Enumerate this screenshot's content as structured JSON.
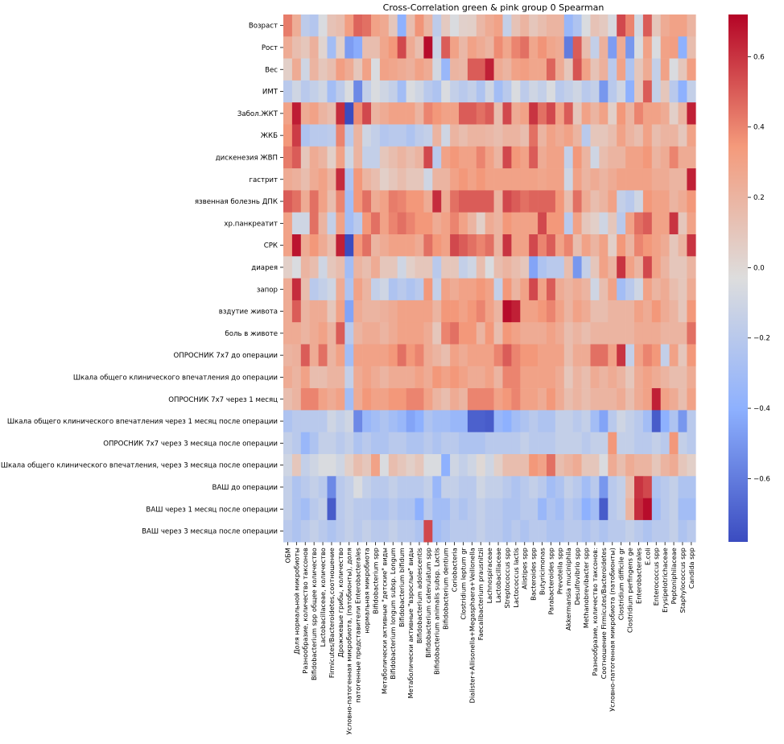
{
  "chart_data": {
    "type": "heatmap",
    "title": "Cross-Correlation green & pink group 0 Spearman",
    "xlabel": "",
    "ylabel": "",
    "colormap": "coolwarm",
    "colormap_stops": [
      "#3b4cc0",
      "#8db0fe",
      "#dddddd",
      "#f49a7b",
      "#b40426"
    ],
    "vmin": -0.78,
    "vmax": 0.72,
    "colorbar_ticks": [
      "0.6",
      "0.4",
      "0.2",
      "0.0",
      "−0.2",
      "−0.4",
      "−0.6"
    ],
    "colorbar_tick_values": [
      0.6,
      0.4,
      0.2,
      0.0,
      -0.2,
      -0.4,
      -0.6
    ],
    "rows": [
      "Возраст",
      "Рост",
      "Вес",
      "ИМТ",
      "Забол.ЖКТ",
      "ЖКБ",
      "дискенезия ЖВП",
      "гастрит",
      "язвенная болезнь ДПК",
      "хр.панкреатит",
      "СРК",
      "диарея",
      "запор",
      "вздутие живота",
      "боль в животе",
      "ОПРОСНИК 7х7 до операции",
      "Шкала общего клинического впечатления до операции",
      "ОПРОСНИК 7х7 через 1 месяц",
      "Шкала общего клинического впечатления через 1 месяц после операции",
      "ОПРОСНИК 7х7 через 3 месяца после операции",
      "Шкала общего клинического впечатления, через 3 месяца после операции",
      "ВАШ до операции",
      "ВАШ через 1 месяц после операции",
      "ВАШ через 3 месяца после операции"
    ],
    "columns": [
      "ОБМ",
      "Доля нормальной микробиоты",
      "Разнообразие, количество таксонов",
      "Bifidobacterium spp общее количество",
      "Lactobacillaceae, количество",
      "Firmicutes/Bacteroidetes,соотношение",
      "Дрожжевые грибы, количество",
      "Условно-патогенная микробиота, (патобионты), доля",
      "патогенные представители Enterobacterales",
      "нормальная микробиота",
      "Bifidobacterium spp",
      "Метаболически активные \"детские\" виды",
      "Bifidobacterium longum subsp. Longum",
      "Bifidobacterium bifidum",
      "Метаболически активные \"взрослые\" виды",
      "Bifidobacterium adolescentis",
      "Bifidobacterium catenulatum spp",
      "Bifidobacterium animalis subsp. Lactis",
      "Bifidobacterium dentium",
      "Coriobacteria",
      "Clostridium leptum gr",
      "Dialister+Allisonella+Megasphaera+Veillonella",
      "Faecalibacterium prausnitzii",
      "Lachnospiraceae",
      "Lactobacillaceae",
      "Streptococcus spp",
      "Lactococcus lactis",
      "Alistipes spp",
      "Bacteroides spp",
      "Butyricimonas",
      "Parabacteroides spp",
      "Prevotella spp",
      "Akkermansia muciniphila",
      "Desulfovibrio spp",
      "Methanobrevibacter spp",
      "Разнообразие, количество таксонов:",
      "Соотношение Firmicutes/Bacteroidetes",
      "Условно-патогенная микробиота (патобионты)",
      "Clostridium difficile gr",
      "Clostridium perfingens ge",
      "Enterobacterales",
      "E.coli",
      "Enterococcus spp",
      "Erysipelotrichaceae",
      "Peptoniphilaceae",
      "Staphylococcus spp",
      "Candida spp"
    ],
    "values": [
      [
        0.42,
        0.24,
        -0.18,
        -0.22,
        -0.05,
        0.12,
        0.15,
        0.32,
        0.48,
        0.45,
        0.3,
        0.26,
        0.1,
        -0.4,
        0.15,
        0.36,
        0.2,
        -0.18,
        0.08,
        -0.05,
        0.04,
        0.05,
        0.18,
        0.25,
        0.3,
        -0.15,
        0.12,
        0.2,
        0.1,
        0.15,
        0.2,
        0.2,
        -0.35,
        -0.25,
        -0.05,
        0.12,
        0.08,
        -0.06,
        0.55,
        0.4,
        -0.08,
        0.5,
        0.1,
        0.25,
        0.3,
        0.3,
        0.2
      ],
      [
        0.25,
        0.15,
        0.1,
        0.22,
        0.02,
        -0.3,
        0.05,
        -0.48,
        -0.42,
        0.15,
        0.15,
        0.28,
        0.35,
        0.55,
        0.25,
        0.15,
        0.7,
        -0.12,
        0.5,
        0.3,
        0.18,
        0.3,
        0.25,
        0.2,
        0.38,
        0.28,
        0.4,
        0.45,
        0.28,
        0.36,
        0.28,
        0.25,
        -0.6,
        0.5,
        0.15,
        -0.15,
        0.22,
        -0.48,
        0.25,
        -0.5,
        -0.05,
        0.3,
        -0.05,
        0.3,
        0.32,
        -0.4,
        0.15
      ],
      [
        0.05,
        0.25,
        -0.1,
        0.2,
        0.1,
        0.15,
        0.32,
        0.25,
        0.1,
        0.3,
        -0.05,
        0.3,
        0.28,
        0.25,
        0.22,
        0.3,
        0.25,
        -0.08,
        -0.35,
        0.2,
        0.18,
        0.5,
        0.5,
        0.65,
        0.25,
        0.2,
        0.3,
        0.32,
        0.28,
        0.28,
        0.48,
        0.25,
        0.1,
        0.52,
        0.3,
        0.12,
        0.22,
        -0.2,
        0.3,
        -0.25,
        0.1,
        0.25,
        -0.15,
        0.3,
        -0.05,
        0.1,
        0.32
      ],
      [
        -0.2,
        -0.1,
        -0.2,
        -0.15,
        -0.1,
        -0.3,
        -0.18,
        -0.05,
        -0.55,
        -0.15,
        -0.05,
        -0.1,
        -0.15,
        -0.3,
        -0.05,
        -0.1,
        -0.2,
        -0.25,
        -0.05,
        -0.15,
        -0.2,
        -0.15,
        -0.25,
        -0.1,
        -0.3,
        -0.2,
        -0.05,
        -0.18,
        -0.1,
        -0.15,
        -0.05,
        -0.2,
        -0.15,
        -0.1,
        -0.2,
        -0.15,
        -0.5,
        -0.2,
        -0.1,
        -0.4,
        0.1,
        0.5,
        -0.15,
        0.1,
        -0.2,
        -0.4,
        -0.15
      ],
      [
        0.3,
        0.66,
        0.25,
        0.3,
        0.2,
        0.15,
        0.62,
        -0.78,
        0.38,
        0.55,
        0.2,
        0.25,
        0.3,
        0.3,
        0.3,
        0.2,
        0.4,
        0.35,
        0.3,
        0.3,
        0.5,
        0.5,
        0.45,
        0.5,
        0.15,
        0.55,
        0.25,
        0.3,
        0.6,
        0.45,
        0.55,
        0.3,
        0.5,
        0.1,
        0.3,
        0.2,
        0.3,
        0.05,
        0.35,
        0.2,
        0.4,
        0.3,
        0.3,
        0.25,
        0.05,
        0.2,
        0.65
      ],
      [
        0.35,
        0.58,
        -0.25,
        -0.2,
        -0.2,
        -0.18,
        0.4,
        -0.2,
        0.2,
        -0.1,
        -0.15,
        -0.22,
        -0.2,
        -0.2,
        -0.25,
        -0.18,
        -0.15,
        0.2,
        -0.1,
        0.2,
        0.15,
        0.2,
        0.2,
        0.18,
        0.15,
        0.2,
        0.2,
        0.15,
        0.45,
        0.2,
        0.3,
        0.25,
        0.3,
        0.2,
        -0.2,
        0.1,
        0.1,
        0.15,
        0.3,
        0.2,
        0.15,
        0.3,
        0.15,
        0.2,
        0.2,
        0.1,
        0.3
      ],
      [
        0.42,
        0.5,
        0.1,
        0.25,
        0.2,
        0.05,
        0.3,
        -0.1,
        0.2,
        -0.15,
        -0.15,
        0.1,
        0.15,
        0.2,
        0.15,
        0.2,
        0.55,
        -0.2,
        0.3,
        0.35,
        0.3,
        0.3,
        0.4,
        0.3,
        0.2,
        0.55,
        0.35,
        0.3,
        0.5,
        0.25,
        0.3,
        0.3,
        -0.15,
        0.35,
        0.2,
        -0.1,
        0.15,
        0.2,
        0.2,
        0.3,
        0.3,
        0.35,
        0.2,
        0.25,
        0.4,
        0.25,
        0.25
      ],
      [
        0.25,
        0.22,
        0.15,
        0.25,
        0.3,
        0.2,
        0.62,
        -0.25,
        0.35,
        0.2,
        0.15,
        0.05,
        0.1,
        0.15,
        0.1,
        0.1,
        -0.1,
        0.2,
        0.2,
        0.3,
        0.35,
        0.3,
        0.35,
        0.3,
        0.3,
        0.3,
        0.3,
        0.3,
        0.3,
        0.28,
        0.3,
        0.3,
        -0.1,
        0.3,
        0.2,
        0.25,
        0.2,
        0.25,
        0.3,
        0.3,
        0.3,
        0.3,
        0.25,
        0.25,
        0.2,
        0.2,
        0.65
      ],
      [
        0.5,
        0.45,
        0.25,
        0.45,
        0.3,
        0.15,
        0.4,
        -0.3,
        0.35,
        0.45,
        0.25,
        0.3,
        0.42,
        0.4,
        0.35,
        0.35,
        0.25,
        0.62,
        0.25,
        0.45,
        0.5,
        0.5,
        0.5,
        0.5,
        0.2,
        0.55,
        0.5,
        0.45,
        0.48,
        0.48,
        0.48,
        0.35,
        0.15,
        0.45,
        0.25,
        0.15,
        0.2,
        0.3,
        -0.15,
        -0.2,
        -0.1,
        0.35,
        0.3,
        0.3,
        0.2,
        0.25,
        0.35
      ],
      [
        0.3,
        -0.1,
        -0.1,
        0.45,
        0.2,
        -0.15,
        0.3,
        -0.3,
        -0.2,
        0.35,
        0.45,
        0.3,
        0.4,
        0.45,
        0.4,
        0.35,
        0.35,
        0.25,
        0.3,
        0.4,
        0.3,
        0.2,
        0.05,
        0.25,
        0.2,
        0.35,
        0.3,
        0.3,
        0.3,
        0.55,
        0.35,
        0.35,
        -0.2,
        0.3,
        0.1,
        0.05,
        -0.1,
        0.1,
        -0.2,
        0.3,
        0.45,
        0.5,
        0.3,
        0.3,
        0.6,
        0.1,
        0.3
      ],
      [
        0.3,
        0.68,
        0.25,
        0.35,
        0.25,
        0.15,
        0.65,
        -0.78,
        0.35,
        0.45,
        0.2,
        0.25,
        0.3,
        0.3,
        0.3,
        0.25,
        0.45,
        0.35,
        0.3,
        0.55,
        0.5,
        0.45,
        0.4,
        0.45,
        0.2,
        0.6,
        0.3,
        0.3,
        0.55,
        0.4,
        0.5,
        0.3,
        0.4,
        0.15,
        0.3,
        0.2,
        0.3,
        0.05,
        0.35,
        0.2,
        0.4,
        0.35,
        0.3,
        0.25,
        0.1,
        0.2,
        0.6
      ],
      [
        0.05,
        -0.05,
        0.2,
        0.15,
        -0.1,
        0.1,
        0.15,
        -0.3,
        0.2,
        0.15,
        0.25,
        0.1,
        0.1,
        -0.1,
        0.05,
        0.1,
        0.1,
        -0.2,
        0.1,
        0.1,
        -0.15,
        -0.1,
        0.15,
        -0.05,
        0.15,
        0.2,
        0.15,
        0.1,
        -0.45,
        -0.25,
        -0.2,
        -0.2,
        0.15,
        -0.5,
        -0.15,
        0.1,
        0.3,
        0.2,
        0.6,
        0.3,
        0.2,
        0.55,
        0.3,
        0.2,
        0.1,
        0.1,
        0.2
      ],
      [
        0.25,
        0.62,
        0.15,
        -0.2,
        -0.15,
        -0.1,
        0.25,
        -0.25,
        0.3,
        0.2,
        -0.15,
        -0.1,
        -0.25,
        -0.2,
        -0.25,
        -0.2,
        0.35,
        -0.15,
        0.3,
        0.25,
        0.3,
        0.3,
        0.35,
        0.3,
        -0.15,
        0.35,
        0.2,
        0.3,
        0.55,
        0.3,
        0.5,
        0.25,
        0.2,
        0.25,
        0.2,
        -0.1,
        0.15,
        0.3,
        -0.3,
        -0.2,
        -0.1,
        0.3,
        0.2,
        0.25,
        0.15,
        0.1,
        0.25
      ],
      [
        0.25,
        0.5,
        0.2,
        0.25,
        0.25,
        0.1,
        0.3,
        -0.45,
        0.25,
        0.2,
        0.2,
        0.22,
        0.25,
        0.3,
        0.3,
        0.3,
        0.3,
        0.2,
        0.35,
        0.35,
        0.3,
        0.35,
        0.4,
        0.3,
        0.2,
        0.7,
        0.65,
        0.3,
        0.3,
        0.35,
        0.4,
        0.3,
        0.2,
        0.3,
        0.25,
        0.15,
        0.15,
        0.2,
        0.2,
        0.2,
        0.3,
        0.25,
        0.35,
        0.25,
        0.2,
        0.1,
        0.35
      ],
      [
        0.25,
        0.25,
        0.2,
        0.25,
        0.3,
        0.2,
        0.5,
        -0.2,
        0.2,
        0.25,
        0.25,
        0.2,
        0.25,
        0.3,
        0.3,
        0.3,
        0.25,
        0.1,
        0.4,
        0.45,
        0.35,
        0.35,
        0.2,
        0.35,
        0.15,
        0.35,
        0.3,
        0.25,
        0.25,
        0.25,
        0.3,
        0.25,
        0.15,
        0.2,
        0.15,
        0.2,
        0.2,
        0.2,
        0.2,
        0.2,
        0.25,
        0.25,
        0.25,
        0.2,
        0.2,
        0.2,
        0.45
      ],
      [
        0.2,
        0.22,
        0.5,
        0.25,
        0.45,
        0.2,
        0.3,
        -0.3,
        0.3,
        0.3,
        0.3,
        0.3,
        0.35,
        0.45,
        0.35,
        0.4,
        0.25,
        0.2,
        0.15,
        0.3,
        0.25,
        0.3,
        0.3,
        0.3,
        0.4,
        0.5,
        0.4,
        0.35,
        0.35,
        0.3,
        0.3,
        0.3,
        0.15,
        0.25,
        0.25,
        0.45,
        0.45,
        0.3,
        0.6,
        -0.15,
        0.3,
        0.4,
        0.35,
        -0.15,
        0.3,
        0.1,
        0.35
      ],
      [
        0.25,
        0.2,
        0.3,
        0.15,
        0.15,
        0.2,
        0.2,
        -0.15,
        0.25,
        0.3,
        0.25,
        0.2,
        0.25,
        0.25,
        0.25,
        0.3,
        0.25,
        0.35,
        0.3,
        0.35,
        0.3,
        0.25,
        0.25,
        0.3,
        0.2,
        0.4,
        0.4,
        0.3,
        0.3,
        0.3,
        0.3,
        0.25,
        0.1,
        0.2,
        0.15,
        0.25,
        0.2,
        0.25,
        0.2,
        0.1,
        0.25,
        0.3,
        0.25,
        0.2,
        0.15,
        0.15,
        0.25
      ],
      [
        0.15,
        0.2,
        0.4,
        0.4,
        0.3,
        0.25,
        0.3,
        -0.3,
        0.25,
        0.35,
        0.3,
        0.3,
        0.35,
        0.35,
        0.4,
        0.4,
        0.3,
        0.2,
        0.15,
        0.25,
        0.2,
        0.4,
        0.4,
        0.4,
        0.3,
        0.35,
        0.4,
        0.3,
        0.3,
        0.25,
        0.35,
        0.25,
        0.15,
        0.2,
        0.15,
        0.2,
        0.2,
        0.2,
        0.25,
        0.15,
        0.25,
        0.3,
        0.65,
        0.3,
        0.25,
        0.15,
        0.3
      ],
      [
        -0.25,
        -0.2,
        -0.2,
        -0.2,
        -0.2,
        -0.1,
        -0.15,
        -0.1,
        -0.55,
        -0.35,
        -0.3,
        -0.25,
        -0.3,
        -0.35,
        -0.45,
        -0.4,
        -0.25,
        -0.3,
        -0.3,
        -0.35,
        -0.35,
        -0.7,
        -0.7,
        -0.72,
        -0.35,
        -0.4,
        -0.3,
        -0.25,
        -0.2,
        -0.25,
        -0.25,
        -0.15,
        -0.15,
        -0.2,
        -0.15,
        -0.3,
        -0.45,
        -0.2,
        -0.1,
        -0.15,
        -0.2,
        -0.3,
        -0.72,
        -0.4,
        -0.25,
        -0.5,
        -0.2
      ],
      [
        -0.15,
        -0.2,
        -0.35,
        -0.25,
        -0.15,
        -0.15,
        -0.2,
        -0.15,
        -0.25,
        -0.2,
        -0.25,
        -0.25,
        -0.2,
        -0.2,
        -0.25,
        -0.25,
        -0.2,
        -0.25,
        -0.2,
        -0.2,
        -0.25,
        -0.25,
        -0.25,
        -0.2,
        -0.2,
        -0.2,
        -0.2,
        -0.15,
        -0.2,
        -0.2,
        -0.2,
        -0.15,
        -0.15,
        -0.15,
        -0.2,
        -0.15,
        -0.15,
        0.35,
        -0.15,
        -0.15,
        -0.2,
        -0.2,
        -0.15,
        -0.2,
        0.35,
        -0.15,
        -0.2
      ],
      [
        -0.1,
        0.1,
        -0.15,
        -0.1,
        -0.05,
        -0.05,
        -0.1,
        0.05,
        0.15,
        0.1,
        0.3,
        -0.05,
        0.15,
        0.1,
        0.05,
        0.1,
        -0.05,
        -0.05,
        -0.4,
        -0.1,
        -0.15,
        -0.1,
        0.0,
        -0.1,
        0.05,
        0.15,
        0.15,
        0.15,
        0.35,
        0.3,
        0.45,
        0.15,
        0.2,
        0.25,
        0.1,
        0.1,
        -0.05,
        0.25,
        0.15,
        0.25,
        0.2,
        0.2,
        0.1,
        0.2,
        0.25,
        0.1,
        0.05
      ],
      [
        -0.15,
        -0.25,
        -0.2,
        -0.15,
        -0.2,
        -0.55,
        -0.2,
        -0.15,
        -0.05,
        -0.15,
        -0.2,
        -0.2,
        -0.15,
        -0.2,
        -0.2,
        -0.2,
        -0.15,
        -0.35,
        -0.15,
        -0.15,
        -0.2,
        -0.2,
        -0.1,
        -0.15,
        -0.15,
        -0.2,
        -0.25,
        -0.2,
        -0.15,
        -0.2,
        -0.3,
        -0.25,
        -0.15,
        -0.2,
        -0.3,
        -0.2,
        -0.5,
        -0.2,
        -0.15,
        0.15,
        0.6,
        0.55,
        -0.25,
        -0.2,
        -0.15,
        -0.25,
        -0.25
      ],
      [
        -0.15,
        -0.25,
        -0.3,
        -0.2,
        -0.15,
        -0.72,
        -0.2,
        -0.15,
        -0.2,
        -0.2,
        -0.25,
        -0.25,
        -0.2,
        -0.25,
        -0.25,
        -0.4,
        -0.2,
        -0.3,
        -0.3,
        -0.2,
        -0.25,
        -0.2,
        -0.15,
        -0.2,
        -0.2,
        -0.25,
        -0.25,
        -0.2,
        -0.2,
        -0.35,
        -0.25,
        -0.3,
        -0.2,
        -0.25,
        -0.4,
        -0.3,
        -0.72,
        -0.2,
        -0.15,
        0.2,
        0.62,
        0.7,
        -0.3,
        -0.2,
        -0.15,
        -0.3,
        -0.3
      ],
      [
        -0.2,
        -0.25,
        -0.2,
        -0.15,
        -0.2,
        -0.25,
        -0.2,
        -0.15,
        -0.2,
        -0.15,
        -0.2,
        -0.2,
        -0.15,
        -0.2,
        -0.2,
        -0.25,
        0.55,
        -0.3,
        -0.25,
        -0.2,
        -0.2,
        -0.2,
        -0.15,
        -0.2,
        -0.2,
        -0.25,
        -0.2,
        -0.25,
        -0.2,
        -0.2,
        -0.25,
        -0.25,
        -0.2,
        -0.2,
        -0.25,
        -0.2,
        -0.25,
        -0.2,
        -0.2,
        -0.15,
        -0.2,
        -0.25,
        -0.2,
        -0.2,
        -0.15,
        -0.25,
        -0.2
      ]
    ]
  }
}
